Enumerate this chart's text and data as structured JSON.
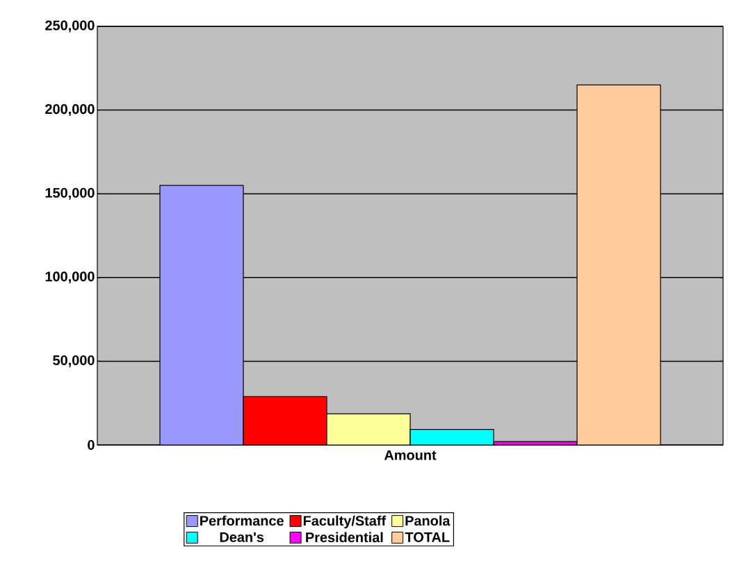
{
  "chart_data": {
    "type": "bar",
    "categories": [
      "Amount"
    ],
    "series": [
      {
        "name": "Performance",
        "color": "#9999ff",
        "values": [
          155000
        ]
      },
      {
        "name": "Faculty/Staff",
        "color": "#ff0000",
        "values": [
          28900
        ]
      },
      {
        "name": "Panola",
        "color": "#ffff99",
        "values": [
          18600
        ]
      },
      {
        "name": "Dean's",
        "color": "#00ffff",
        "values": [
          9300
        ]
      },
      {
        "name": "Presidential",
        "color": "#ff00ff",
        "values": [
          2000
        ]
      },
      {
        "name": "TOTAL",
        "color": "#ffcc99",
        "values": [
          215000
        ]
      }
    ],
    "ylim": [
      0,
      250000
    ],
    "yticks": [
      0,
      {
        "value": 50000,
        "label": "50,000"
      },
      {
        "value": 100000,
        "label": "100,000"
      },
      {
        "value": 150000,
        "label": "150,000"
      },
      {
        "value": 200000,
        "label": "200,000"
      },
      {
        "value": 250000,
        "label": "250,000"
      }
    ],
    "grid": "y",
    "legend": "bottom"
  }
}
